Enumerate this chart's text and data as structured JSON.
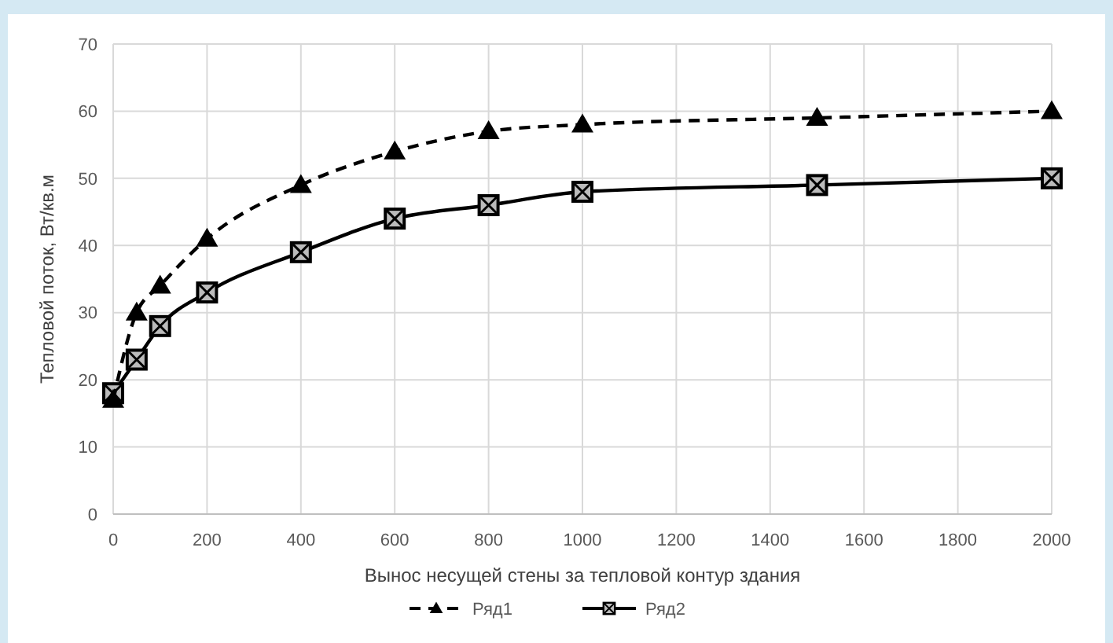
{
  "chart_data": {
    "type": "line",
    "xlabel": "Вынос несущей стены за тепловой контур здания",
    "ylabel": "Тепловой поток, Вт/кв.м",
    "x": [
      0,
      50,
      100,
      200,
      400,
      600,
      800,
      1000,
      1500,
      2000
    ],
    "series": [
      {
        "name": "Ряд1",
        "color": "#000000",
        "marker": "triangle",
        "line_style": "dashed",
        "values": [
          17,
          30,
          34,
          41,
          49,
          54,
          57,
          58,
          59,
          60
        ]
      },
      {
        "name": "Ряд2",
        "color": "#000000",
        "marker": "square",
        "line_style": "solid",
        "values": [
          18,
          23,
          28,
          33,
          39,
          44,
          46,
          48,
          49,
          50
        ]
      }
    ],
    "xlim": [
      0,
      2000
    ],
    "xticks": [
      0,
      200,
      400,
      600,
      800,
      1000,
      1200,
      1400,
      1600,
      1800,
      2000
    ],
    "ylim": [
      0,
      70
    ],
    "yticks": [
      0,
      10,
      20,
      30,
      40,
      50,
      60,
      70
    ],
    "grid": true,
    "legend": "bottom"
  }
}
